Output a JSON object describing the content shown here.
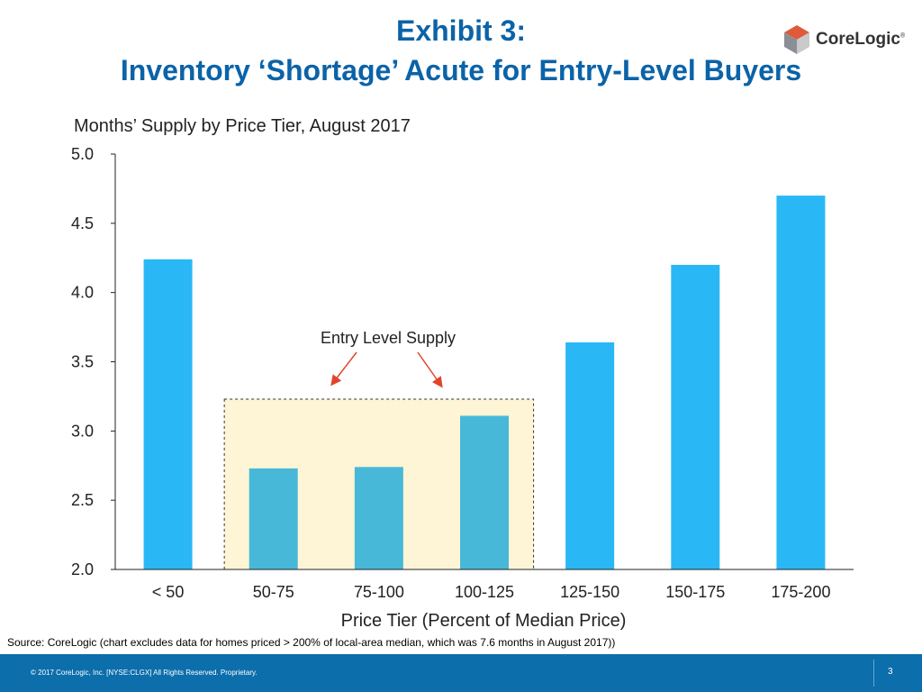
{
  "slide": {
    "title_line1": "Exhibit 3:",
    "title_line2": "Inventory ‘Shortage’ Acute for Entry-Level Buyers",
    "logo_text": "CoreLogic",
    "logo_mark": "®",
    "source_note": "Source: CoreLogic (chart excludes data for homes priced > 200% of local-area median, which was 7.6 months in August 2017))",
    "footer_copyright": "© 2017 CoreLogic, Inc. [NYSE:CLGX]  All Rights Reserved.  Proprietary.",
    "page_number": "3"
  },
  "colors": {
    "title": "#0b63a8",
    "bar_default": "#2ab7f6",
    "bar_entry": "#48b8d8",
    "highlight_fill": "#fdf5d5",
    "arrow": "#e0452c",
    "footer": "#0c6eab"
  },
  "chart_data": {
    "type": "bar",
    "title": "Months’ Supply by Price Tier, August 2017",
    "xlabel": "Price Tier (Percent of Median Price)",
    "ylabel": "",
    "categories": [
      "< 50",
      "50-75",
      "75-100",
      "100-125",
      "125-150",
      "150-175",
      "175-200"
    ],
    "values": [
      4.24,
      2.73,
      2.74,
      3.11,
      3.64,
      4.2,
      4.7
    ],
    "ylim": [
      2.0,
      5.0
    ],
    "yticks": [
      "2.0",
      "2.5",
      "3.0",
      "3.5",
      "4.0",
      "4.5",
      "5.0"
    ],
    "grid": false,
    "legend": "none",
    "annotation": {
      "text": "Entry Level Supply",
      "highlight_categories": [
        "50-75",
        "75-100",
        "100-125"
      ]
    }
  }
}
